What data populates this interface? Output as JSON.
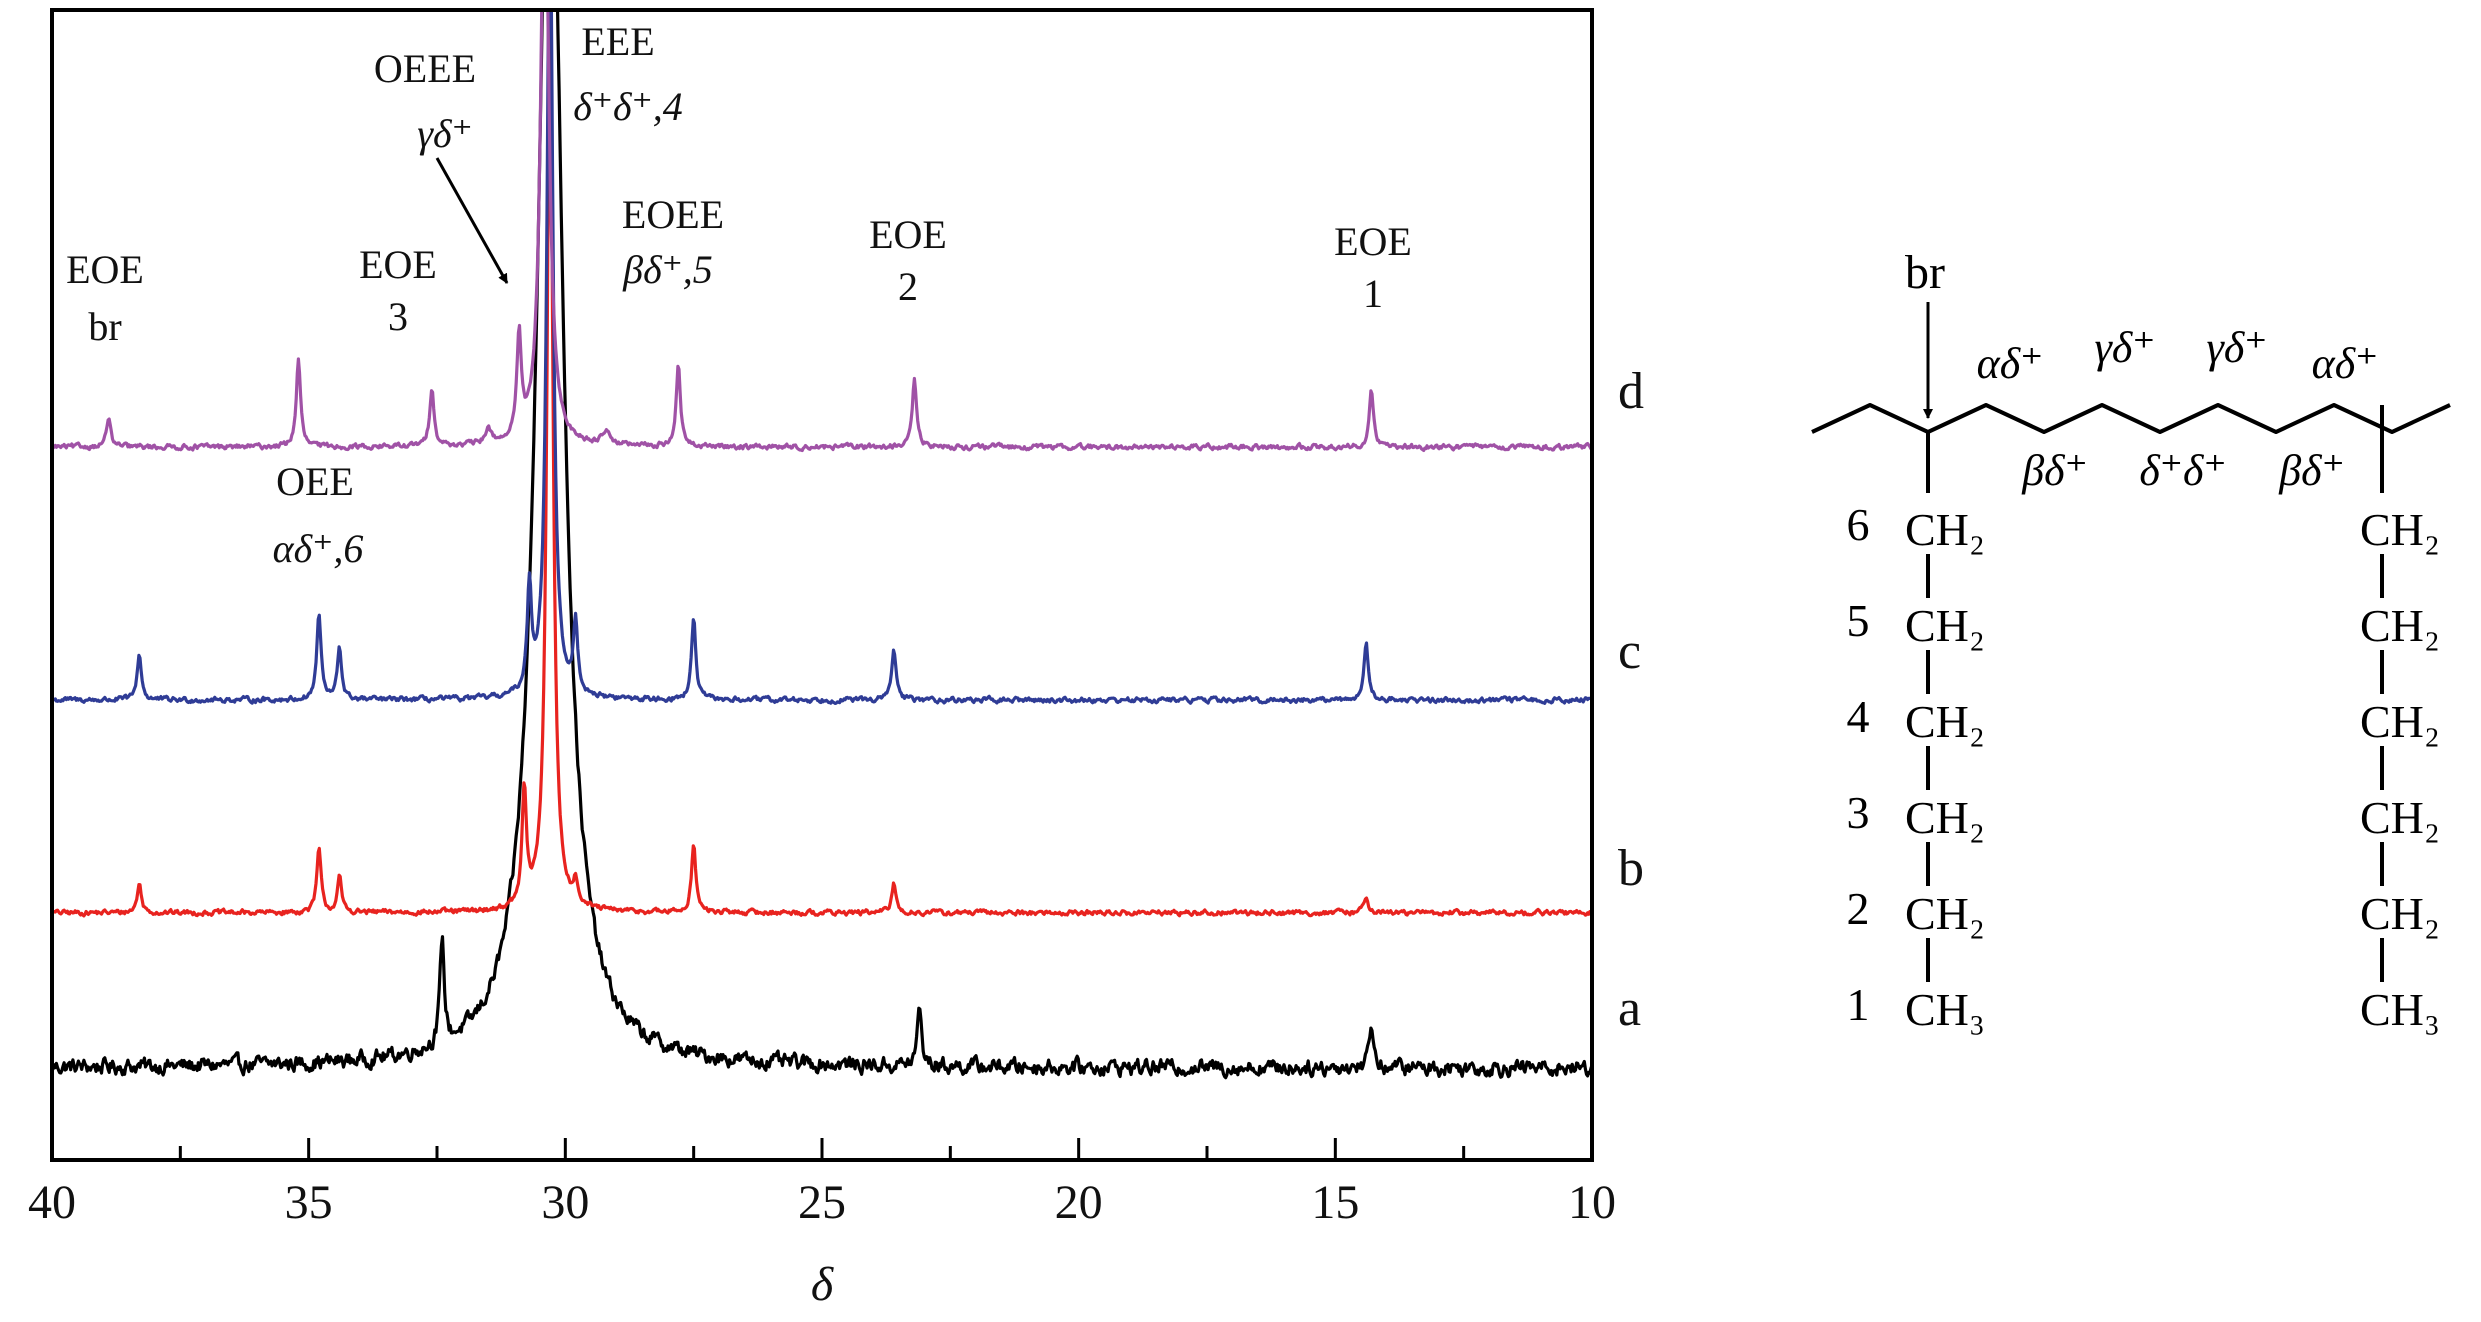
{
  "chart_data": {
    "type": "line",
    "title": "",
    "xlabel": "δ",
    "ylabel": "",
    "xlim": [
      40,
      10
    ],
    "x_reversed": true,
    "x_ticks": [
      "40",
      "35",
      "30",
      "25",
      "20",
      "15",
      "10"
    ],
    "grid": false,
    "legend": "none",
    "series": [
      {
        "name": "a",
        "color": "#000000",
        "baseline": 0.08,
        "noise": 0.012,
        "peaks": [
          {
            "x": 30.3,
            "h": 1.15,
            "w": 0.3
          },
          {
            "x": 32.4,
            "h": 0.09,
            "w": 0.05
          },
          {
            "x": 23.1,
            "h": 0.05,
            "w": 0.05
          },
          {
            "x": 14.3,
            "h": 0.04,
            "w": 0.05
          }
        ]
      },
      {
        "name": "b",
        "color": "#e8231f",
        "baseline": 0.215,
        "noise": 0.004,
        "peaks": [
          {
            "x": 30.3,
            "h": 0.78,
            "w": 0.07
          },
          {
            "x": 30.8,
            "h": 0.1,
            "w": 0.05
          },
          {
            "x": 29.8,
            "h": 0.02,
            "w": 0.05
          },
          {
            "x": 34.8,
            "h": 0.055,
            "w": 0.05
          },
          {
            "x": 34.4,
            "h": 0.03,
            "w": 0.05
          },
          {
            "x": 38.3,
            "h": 0.025,
            "w": 0.05
          },
          {
            "x": 27.5,
            "h": 0.06,
            "w": 0.05
          },
          {
            "x": 23.6,
            "h": 0.025,
            "w": 0.05
          },
          {
            "x": 14.4,
            "h": 0.015,
            "w": 0.05
          }
        ]
      },
      {
        "name": "c",
        "color": "#2f3c96",
        "baseline": 0.4,
        "noise": 0.004,
        "peaks": [
          {
            "x": 30.3,
            "h": 0.7,
            "w": 0.07
          },
          {
            "x": 30.7,
            "h": 0.09,
            "w": 0.05
          },
          {
            "x": 29.8,
            "h": 0.06,
            "w": 0.05
          },
          {
            "x": 34.8,
            "h": 0.075,
            "w": 0.05
          },
          {
            "x": 34.4,
            "h": 0.045,
            "w": 0.05
          },
          {
            "x": 38.3,
            "h": 0.04,
            "w": 0.05
          },
          {
            "x": 27.5,
            "h": 0.07,
            "w": 0.05
          },
          {
            "x": 23.6,
            "h": 0.045,
            "w": 0.05
          },
          {
            "x": 14.4,
            "h": 0.05,
            "w": 0.05
          }
        ]
      },
      {
        "name": "d",
        "color": "#a052a6",
        "baseline": 0.62,
        "noise": 0.004,
        "peaks": [
          {
            "x": 30.4,
            "h": 0.55,
            "w": 0.09
          },
          {
            "x": 30.9,
            "h": 0.09,
            "w": 0.05
          },
          {
            "x": 38.9,
            "h": 0.025,
            "w": 0.05
          },
          {
            "x": 35.2,
            "h": 0.075,
            "w": 0.05
          },
          {
            "x": 32.6,
            "h": 0.052,
            "w": 0.05
          },
          {
            "x": 31.5,
            "h": 0.012,
            "w": 0.08
          },
          {
            "x": 29.2,
            "h": 0.012,
            "w": 0.1
          },
          {
            "x": 27.8,
            "h": 0.07,
            "w": 0.05
          },
          {
            "x": 23.2,
            "h": 0.058,
            "w": 0.05
          },
          {
            "x": 14.3,
            "h": 0.048,
            "w": 0.05
          }
        ]
      }
    ],
    "annotations": [
      {
        "lines": [
          "EOE",
          "br"
        ],
        "x": 38.9,
        "level": "d"
      },
      {
        "lines": [
          "EOE",
          "3"
        ],
        "x": 32.6,
        "level": "d"
      },
      {
        "lines": [
          "OEEE",
          "γδ⁺"
        ],
        "x": 32.4,
        "level": "top",
        "arrow_to_x": 30.9
      },
      {
        "lines": [
          "EEE",
          "δ⁺δ⁺,4"
        ],
        "x": 29.2,
        "level": "top"
      },
      {
        "lines": [
          "EOEE",
          "βδ⁺,5"
        ],
        "x": 27.8,
        "level": "d"
      },
      {
        "lines": [
          "EOE",
          "2"
        ],
        "x": 23.2,
        "level": "d"
      },
      {
        "lines": [
          "EOE",
          "1"
        ],
        "x": 14.3,
        "level": "d"
      },
      {
        "lines": [
          "OEE",
          "αδ⁺,6"
        ],
        "x": 34.5,
        "level": "c"
      }
    ]
  },
  "structure": {
    "branch_label": "br",
    "top_labels": [
      "αδ⁺",
      "γδ⁺",
      "γδ⁺",
      "αδ⁺"
    ],
    "bottom_labels": [
      "βδ⁺",
      "δ⁺δ⁺",
      "βδ⁺"
    ],
    "carbon_numbers": [
      "6",
      "5",
      "4",
      "3",
      "2",
      "1"
    ],
    "left_chain": [
      "CH₂",
      "CH₂",
      "CH₂",
      "CH₂",
      "CH₂",
      "CH₃"
    ],
    "right_chain": [
      "CH₂",
      "CH₂",
      "CH₂",
      "CH₂",
      "CH₂",
      "CH₃"
    ]
  }
}
